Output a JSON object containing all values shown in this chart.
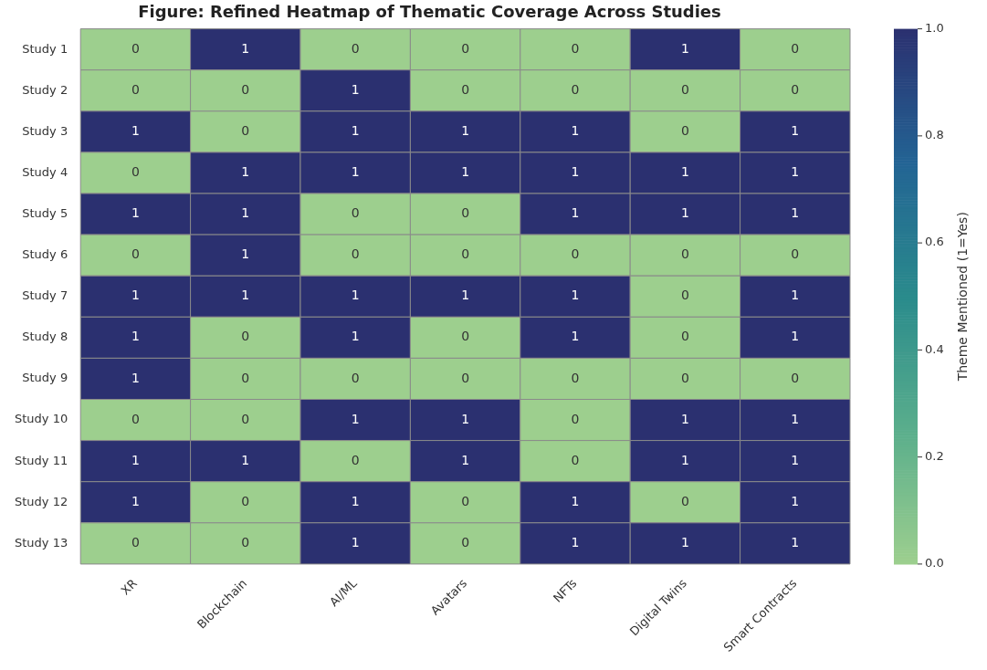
{
  "chart_data": {
    "type": "heatmap",
    "title": "Figure: Refined Heatmap of Thematic Coverage Across Studies",
    "categories": [
      "XR",
      "Blockchain",
      "AI/ML",
      "Avatars",
      "NFTs",
      "Digital Twins",
      "Smart Contracts"
    ],
    "y_categories": [
      "Study 1",
      "Study 2",
      "Study 3",
      "Study 4",
      "Study 5",
      "Study 6",
      "Study 7",
      "Study 8",
      "Study 9",
      "Study 10",
      "Study 11",
      "Study 12",
      "Study 13"
    ],
    "cells": [
      [
        0,
        1,
        0,
        0,
        0,
        1,
        0
      ],
      [
        0,
        0,
        1,
        0,
        0,
        0,
        0
      ],
      [
        1,
        0,
        1,
        1,
        1,
        0,
        1
      ],
      [
        0,
        1,
        1,
        1,
        1,
        1,
        1
      ],
      [
        1,
        1,
        0,
        0,
        1,
        1,
        1
      ],
      [
        0,
        1,
        0,
        0,
        0,
        0,
        0
      ],
      [
        1,
        1,
        1,
        1,
        1,
        0,
        1
      ],
      [
        1,
        0,
        1,
        0,
        1,
        0,
        1
      ],
      [
        1,
        0,
        0,
        0,
        0,
        0,
        0
      ],
      [
        0,
        0,
        1,
        1,
        0,
        1,
        1
      ],
      [
        1,
        1,
        0,
        1,
        0,
        1,
        1
      ],
      [
        1,
        0,
        1,
        0,
        1,
        0,
        1
      ],
      [
        0,
        0,
        1,
        0,
        1,
        1,
        1
      ]
    ],
    "data_labels": true,
    "clabel": "Theme Mentioned (1=Yes)",
    "clim": [
      0,
      1
    ],
    "cticks": [
      {
        "value": 0,
        "label": "0.0"
      },
      {
        "value": 0.2,
        "label": "0.2"
      },
      {
        "value": 0.4,
        "label": "0.4"
      },
      {
        "value": 0.6,
        "label": "0.6"
      },
      {
        "value": 0.8,
        "label": "0.8"
      },
      {
        "value": 1,
        "label": "1.0"
      }
    ]
  }
}
